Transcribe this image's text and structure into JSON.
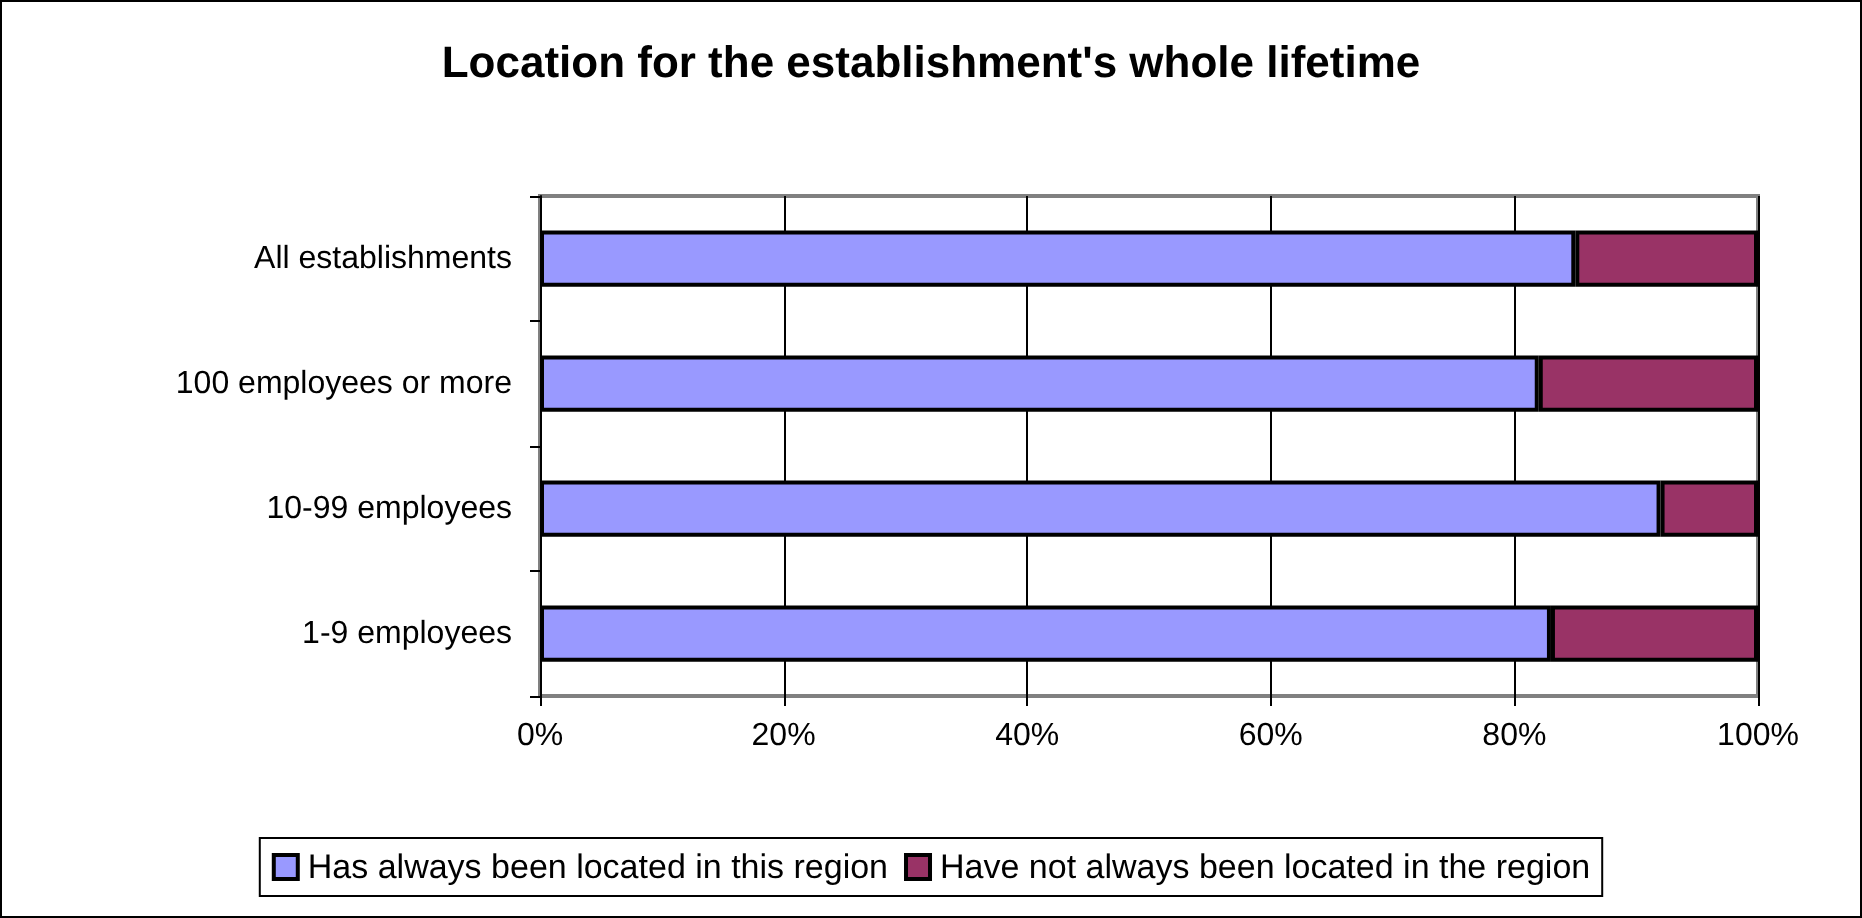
{
  "chart_data": {
    "type": "bar",
    "title": "Location for the establishment's whole lifetime",
    "orientation": "horizontal",
    "stacked": true,
    "categories": [
      "All establishments",
      "100 employees or more",
      "10-99 employees",
      "1-9 employees"
    ],
    "series": [
      {
        "name": "Has always been located in this region",
        "color": "#9999ff",
        "values": [
          85,
          82,
          92,
          83
        ]
      },
      {
        "name": "Have not always been located in the region",
        "color": "#993366",
        "values": [
          15,
          18,
          8,
          17
        ]
      }
    ],
    "xlim": [
      0,
      100
    ],
    "xticks": [
      {
        "value": 0,
        "label": "0%"
      },
      {
        "value": 20,
        "label": "20%"
      },
      {
        "value": 40,
        "label": "40%"
      },
      {
        "value": 60,
        "label": "60%"
      },
      {
        "value": 80,
        "label": "80%"
      },
      {
        "value": 100,
        "label": "100%"
      }
    ],
    "grid": "x",
    "legend": "bottom"
  }
}
